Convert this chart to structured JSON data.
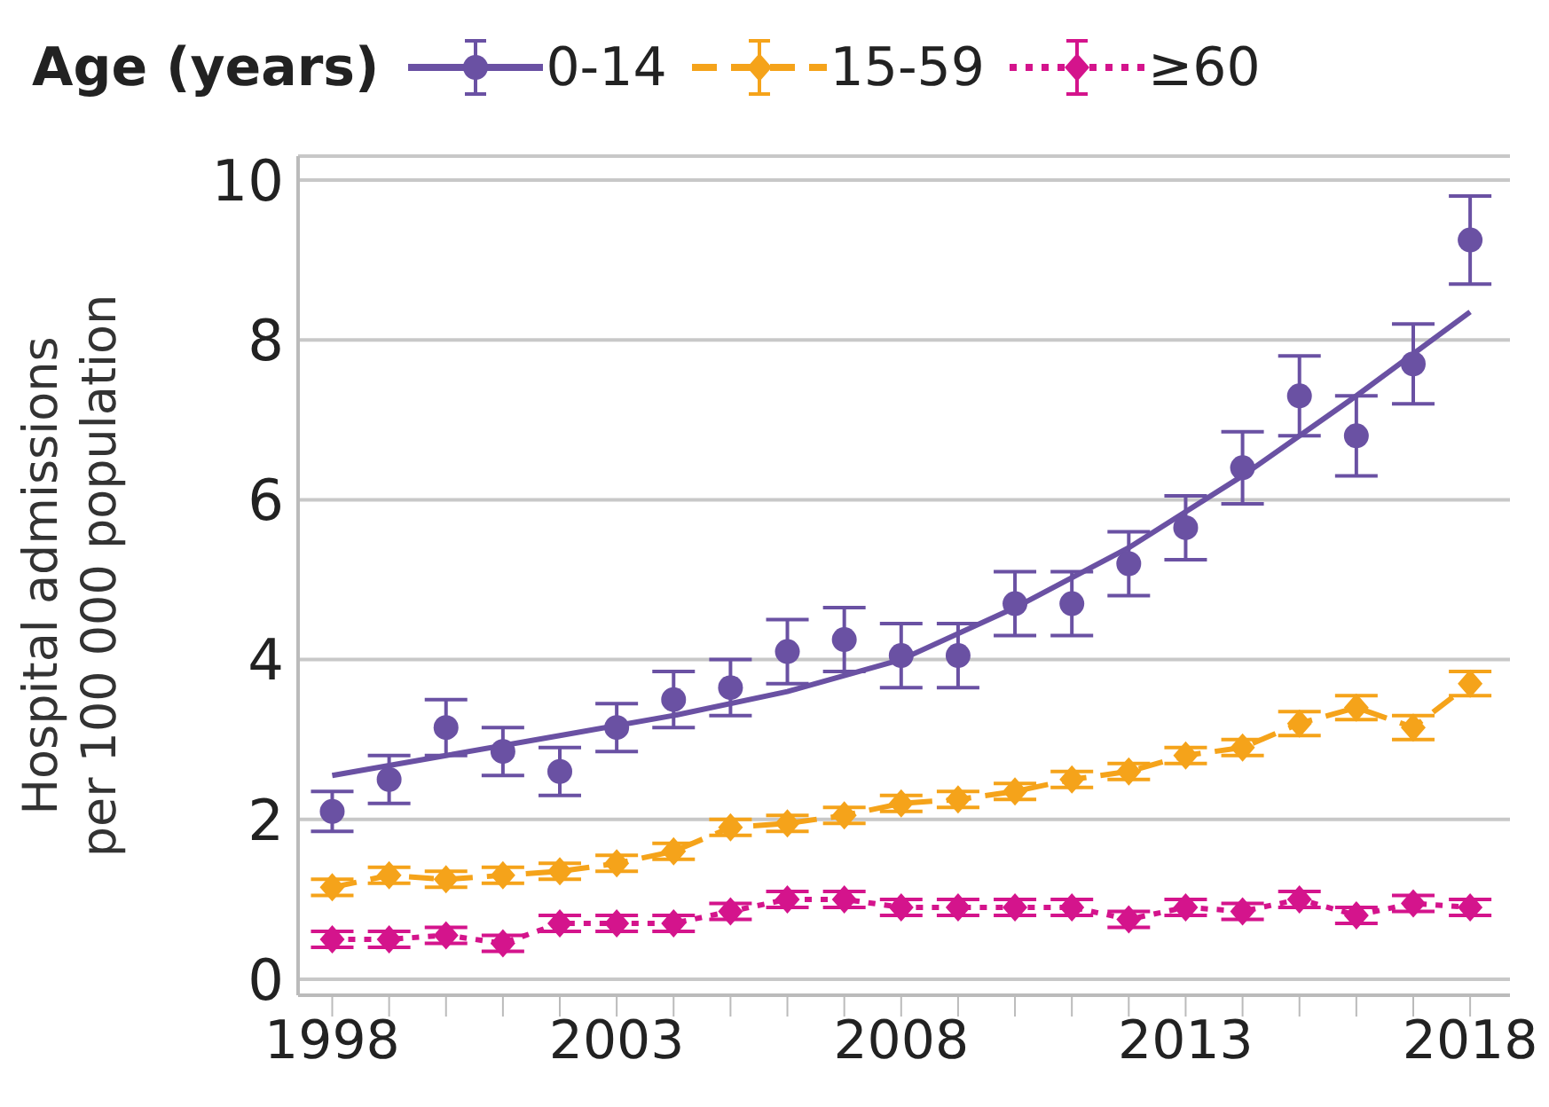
{
  "chart_data": {
    "type": "scatter",
    "legend_title": "Age (years)",
    "ylabel": "Hospital admissions\nper 100 000 population",
    "x": [
      1998,
      1999,
      2000,
      2001,
      2002,
      2003,
      2004,
      2005,
      2006,
      2007,
      2008,
      2009,
      2010,
      2011,
      2012,
      2013,
      2014,
      2015,
      2016,
      2017,
      2018
    ],
    "xlim": [
      1997.4,
      2018.7
    ],
    "xticks": [
      1998,
      {
        "value": 1999,
        "label": null
      },
      {
        "value": 2000,
        "label": null
      },
      {
        "value": 2001,
        "label": null
      },
      {
        "value": 2002,
        "label": null
      },
      2003,
      {
        "value": 2004,
        "label": null
      },
      {
        "value": 2005,
        "label": null
      },
      {
        "value": 2006,
        "label": null
      },
      {
        "value": 2007,
        "label": null
      },
      2008,
      {
        "value": 2009,
        "label": null
      },
      {
        "value": 2010,
        "label": null
      },
      {
        "value": 2011,
        "label": null
      },
      {
        "value": 2012,
        "label": null
      },
      2013,
      {
        "value": 2014,
        "label": null
      },
      {
        "value": 2015,
        "label": null
      },
      {
        "value": 2016,
        "label": null
      },
      {
        "value": 2017,
        "label": null
      },
      2018
    ],
    "ylim": [
      -0.2,
      10.3
    ],
    "yticks": [
      0,
      2,
      4,
      6,
      8,
      10
    ],
    "grid": "y",
    "legend": "top",
    "series": [
      {
        "name": "0-14",
        "color": "#6a51a3",
        "marker": "circle",
        "line_style": "solid",
        "values": [
          2.1,
          2.5,
          3.15,
          2.85,
          2.6,
          3.15,
          3.5,
          3.65,
          4.1,
          4.25,
          4.05,
          4.05,
          4.7,
          4.7,
          5.2,
          5.65,
          6.4,
          7.3,
          6.8,
          7.7,
          9.25
        ],
        "errors": [
          0.25,
          0.3,
          0.35,
          0.3,
          0.3,
          0.3,
          0.35,
          0.35,
          0.4,
          0.4,
          0.4,
          0.4,
          0.4,
          0.4,
          0.4,
          0.4,
          0.45,
          0.5,
          0.5,
          0.5,
          0.55
        ]
      },
      {
        "type": "line",
        "color": "#6a51a3",
        "marker": "none",
        "line_style": "solid",
        "x": [
          1998,
          2000,
          2002,
          2004,
          2006,
          2008,
          2010,
          2012,
          2014,
          2016,
          2018
        ],
        "values": [
          2.55,
          2.8,
          3.05,
          3.3,
          3.6,
          4.0,
          4.65,
          5.4,
          6.3,
          7.3,
          8.35
        ]
      },
      {
        "name": "15-59",
        "type": "line",
        "color": "#f5a31a",
        "marker": "diamond",
        "line_style": "dashed",
        "values": [
          1.15,
          1.3,
          1.25,
          1.3,
          1.35,
          1.45,
          1.6,
          1.9,
          1.95,
          2.05,
          2.2,
          2.25,
          2.35,
          2.5,
          2.6,
          2.8,
          2.9,
          3.2,
          3.4,
          3.15,
          3.7
        ],
        "errors": [
          0.1,
          0.1,
          0.1,
          0.1,
          0.1,
          0.1,
          0.1,
          0.1,
          0.1,
          0.1,
          0.1,
          0.1,
          0.1,
          0.1,
          0.1,
          0.1,
          0.1,
          0.15,
          0.15,
          0.15,
          0.15
        ]
      },
      {
        "name": "≥60",
        "type": "line",
        "color": "#d4148c",
        "marker": "diamond",
        "line_style": "dotted",
        "values": [
          0.5,
          0.5,
          0.55,
          0.45,
          0.7,
          0.7,
          0.7,
          0.85,
          1.0,
          1.0,
          0.9,
          0.9,
          0.9,
          0.9,
          0.75,
          0.9,
          0.85,
          1.0,
          0.8,
          0.95,
          0.9
        ],
        "errors": [
          0.1,
          0.1,
          0.1,
          0.1,
          0.1,
          0.1,
          0.1,
          0.1,
          0.1,
          0.1,
          0.1,
          0.1,
          0.1,
          0.1,
          0.1,
          0.1,
          0.1,
          0.1,
          0.1,
          0.1,
          0.1
        ]
      }
    ]
  }
}
